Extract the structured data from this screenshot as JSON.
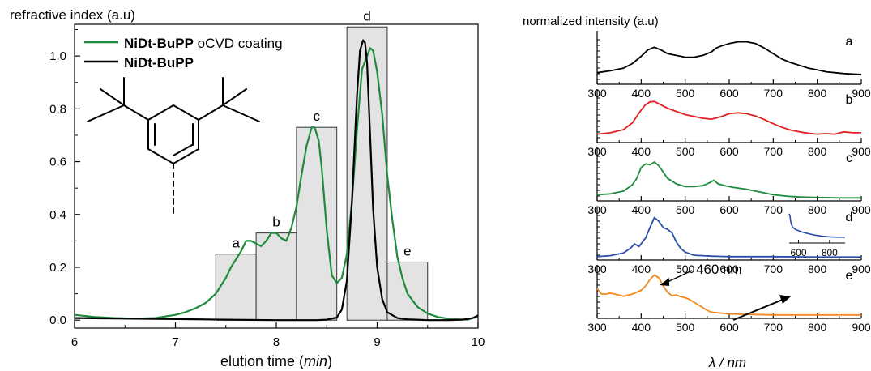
{
  "chart_data": [
    {
      "type": "line",
      "ylabel": "refractive index (a.u)",
      "xlabel_main": "elution time (",
      "xlabel_unit": "min",
      "xlabel_close": ")",
      "xlim": [
        6,
        10
      ],
      "ylim": [
        -0.03,
        1.12
      ],
      "xticks": [
        6,
        7,
        8,
        9,
        10
      ],
      "xtick_labels": [
        "6",
        "7",
        "8",
        "9",
        "10"
      ],
      "yticks": [
        0.0,
        0.2,
        0.4,
        0.6,
        0.8,
        1.0
      ],
      "ytick_labels": [
        "0.0",
        "0.2",
        "0.4",
        "0.6",
        "0.8",
        "1.0"
      ],
      "legend": {
        "position": "top-left",
        "entries": [
          {
            "bold": "NiDt-BuPP",
            "normal": " oCVD coating",
            "color": "#1e8b3a"
          },
          {
            "bold": "NiDt-BuPP",
            "normal": "",
            "color": "#000000"
          }
        ]
      },
      "fractions": [
        {
          "label": "a",
          "x0": 7.4,
          "x1": 7.8,
          "height": 0.25
        },
        {
          "label": "b",
          "x0": 7.8,
          "x1": 8.2,
          "height": 0.33
        },
        {
          "label": "c",
          "x0": 8.2,
          "x1": 8.6,
          "height": 0.73
        },
        {
          "label": "d",
          "x0": 8.7,
          "x1": 9.1,
          "height": 1.11
        },
        {
          "label": "e",
          "x0": 9.1,
          "x1": 9.5,
          "height": 0.22
        }
      ],
      "series": [
        {
          "name": "NiDt-BuPP oCVD coating",
          "color": "#1e8b3a",
          "x": [
            6.0,
            6.2,
            6.4,
            6.6,
            6.8,
            7.0,
            7.1,
            7.2,
            7.3,
            7.4,
            7.5,
            7.55,
            7.6,
            7.65,
            7.7,
            7.75,
            7.8,
            7.85,
            7.9,
            7.95,
            8.0,
            8.05,
            8.1,
            8.15,
            8.2,
            8.25,
            8.3,
            8.35,
            8.38,
            8.42,
            8.45,
            8.5,
            8.55,
            8.6,
            8.65,
            8.7,
            8.75,
            8.8,
            8.85,
            8.9,
            8.93,
            8.96,
            9.0,
            9.05,
            9.1,
            9.15,
            9.2,
            9.25,
            9.3,
            9.4,
            9.5,
            9.6,
            9.7,
            9.8,
            9.9,
            10.0
          ],
          "y": [
            0.02,
            0.012,
            0.008,
            0.006,
            0.008,
            0.02,
            0.03,
            0.045,
            0.065,
            0.1,
            0.16,
            0.2,
            0.23,
            0.26,
            0.3,
            0.3,
            0.29,
            0.28,
            0.3,
            0.33,
            0.33,
            0.31,
            0.3,
            0.35,
            0.43,
            0.55,
            0.66,
            0.73,
            0.73,
            0.68,
            0.58,
            0.34,
            0.17,
            0.14,
            0.16,
            0.25,
            0.45,
            0.72,
            0.95,
            1.0,
            1.03,
            1.02,
            0.94,
            0.78,
            0.55,
            0.38,
            0.24,
            0.16,
            0.1,
            0.05,
            0.025,
            0.012,
            0.006,
            0.003,
            0.002,
            0.015
          ]
        },
        {
          "name": "NiDt-BuPP",
          "color": "#000000",
          "x": [
            6.0,
            6.5,
            7.0,
            7.5,
            8.0,
            8.4,
            8.5,
            8.6,
            8.65,
            8.7,
            8.75,
            8.8,
            8.83,
            8.86,
            8.88,
            8.9,
            8.93,
            8.96,
            9.0,
            9.05,
            9.1,
            9.2,
            9.3,
            9.5,
            9.7,
            9.85,
            9.95,
            10.0
          ],
          "y": [
            0.008,
            0.006,
            0.004,
            0.002,
            0.0,
            0.0,
            0.002,
            0.01,
            0.04,
            0.15,
            0.45,
            0.85,
            1.02,
            1.06,
            1.05,
            0.97,
            0.7,
            0.42,
            0.2,
            0.08,
            0.03,
            0.008,
            0.003,
            0.0,
            0.0,
            0.002,
            0.008,
            0.018
          ]
        }
      ]
    },
    {
      "type": "line",
      "ylabel": "normalized intensity (a.u)",
      "xlabel_unit": "λ / nm",
      "xlim": [
        300,
        900
      ],
      "xticks": [
        300,
        400,
        500,
        600,
        700,
        800,
        900
      ],
      "xtick_labels": [
        "300",
        "400",
        "500",
        "600",
        "700",
        "800",
        "900"
      ],
      "panels": [
        {
          "label": "a",
          "color": "#000000",
          "x": [
            300,
            330,
            360,
            380,
            400,
            415,
            430,
            445,
            460,
            480,
            500,
            520,
            540,
            560,
            570,
            580,
            600,
            620,
            640,
            660,
            680,
            700,
            720,
            740,
            760,
            780,
            800,
            820,
            840,
            860,
            880,
            900
          ],
          "y": [
            0.22,
            0.26,
            0.32,
            0.42,
            0.58,
            0.72,
            0.78,
            0.72,
            0.64,
            0.6,
            0.56,
            0.56,
            0.6,
            0.68,
            0.76,
            0.8,
            0.86,
            0.9,
            0.9,
            0.86,
            0.76,
            0.64,
            0.52,
            0.44,
            0.38,
            0.32,
            0.28,
            0.24,
            0.22,
            0.2,
            0.19,
            0.18
          ]
        },
        {
          "label": "b",
          "color": "#e02020",
          "x": [
            300,
            330,
            360,
            380,
            400,
            410,
            420,
            430,
            440,
            460,
            480,
            500,
            520,
            540,
            560,
            580,
            600,
            620,
            640,
            660,
            680,
            700,
            720,
            740,
            760,
            780,
            800,
            820,
            840,
            860,
            880,
            900
          ],
          "y": [
            0.15,
            0.18,
            0.25,
            0.4,
            0.68,
            0.8,
            0.86,
            0.87,
            0.82,
            0.72,
            0.65,
            0.58,
            0.54,
            0.5,
            0.48,
            0.53,
            0.6,
            0.62,
            0.6,
            0.55,
            0.47,
            0.38,
            0.3,
            0.24,
            0.2,
            0.17,
            0.15,
            0.16,
            0.15,
            0.2,
            0.18,
            0.18
          ]
        },
        {
          "label": "c",
          "color": "#1e8b3a",
          "x": [
            300,
            330,
            360,
            380,
            390,
            400,
            410,
            420,
            430,
            440,
            450,
            460,
            480,
            500,
            520,
            540,
            555,
            565,
            575,
            590,
            610,
            640,
            670,
            700,
            730,
            760,
            800,
            850,
            900
          ],
          "y": [
            0.1,
            0.12,
            0.18,
            0.32,
            0.46,
            0.7,
            0.78,
            0.76,
            0.82,
            0.74,
            0.6,
            0.46,
            0.34,
            0.28,
            0.28,
            0.3,
            0.36,
            0.42,
            0.34,
            0.3,
            0.26,
            0.22,
            0.16,
            0.1,
            0.07,
            0.05,
            0.04,
            0.03,
            0.03
          ]
        },
        {
          "label": "d",
          "color": "#2a4fa8",
          "x": [
            300,
            330,
            350,
            360,
            375,
            385,
            395,
            410,
            420,
            430,
            440,
            450,
            460,
            470,
            480,
            490,
            500,
            520,
            540,
            560,
            600,
            650,
            700,
            800,
            900
          ],
          "y": [
            0.04,
            0.06,
            0.1,
            0.12,
            0.22,
            0.32,
            0.26,
            0.45,
            0.68,
            0.9,
            0.82,
            0.68,
            0.64,
            0.56,
            0.36,
            0.22,
            0.14,
            0.07,
            0.06,
            0.05,
            0.04,
            0.04,
            0.04,
            0.03,
            0.03
          ]
        },
        {
          "label": "e",
          "color": "#f08a20",
          "x": [
            300,
            310,
            320,
            330,
            340,
            360,
            380,
            400,
            410,
            420,
            430,
            440,
            450,
            460,
            470,
            480,
            490,
            500,
            510,
            520,
            530,
            540,
            550,
            560,
            580,
            600,
            650,
            700,
            800,
            900
          ],
          "y": [
            0.62,
            0.5,
            0.5,
            0.52,
            0.5,
            0.45,
            0.5,
            0.58,
            0.68,
            0.82,
            0.92,
            0.86,
            0.68,
            0.54,
            0.46,
            0.48,
            0.44,
            0.42,
            0.38,
            0.32,
            0.26,
            0.2,
            0.14,
            0.1,
            0.08,
            0.06,
            0.05,
            0.04,
            0.04,
            0.04
          ]
        }
      ],
      "inset": {
        "x": [
          540,
          545,
          550,
          556,
          565,
          580,
          600,
          620,
          650,
          700,
          750,
          800,
          850,
          900
        ],
        "y": [
          0.95,
          0.88,
          0.7,
          0.58,
          0.5,
          0.44,
          0.4,
          0.36,
          0.32,
          0.26,
          0.22,
          0.2,
          0.19,
          0.19
        ],
        "xticks": [
          600,
          800
        ],
        "xtick_labels": [
          "600",
          "800"
        ]
      },
      "annotation": {
        "text": "460 nm"
      }
    }
  ]
}
